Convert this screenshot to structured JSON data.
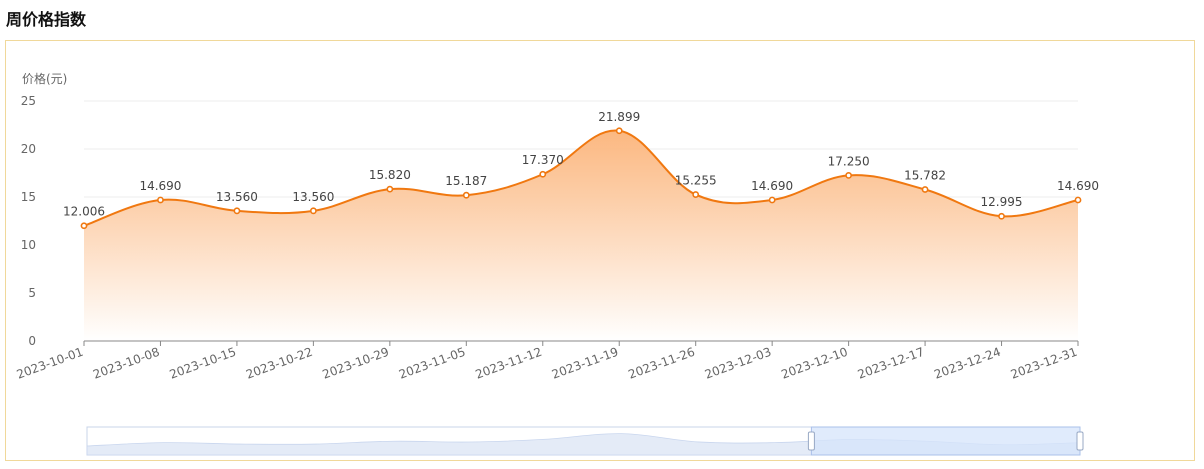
{
  "page": {
    "title": "周价格指数"
  },
  "chart_data": {
    "type": "line",
    "title": "周价格指数",
    "ylabel": "价格(元)",
    "xlabel": "",
    "ylim": [
      0,
      25
    ],
    "yticks": [
      "0",
      "5",
      "10",
      "15",
      "20",
      "25"
    ],
    "grid": true,
    "area_fill": true,
    "colors": {
      "line": "#f07810",
      "area_top": "#fbb47a",
      "area_bottom": "#ffffff",
      "slider_fill": "#d6e4fb",
      "slider_border": "#c8d4e8"
    },
    "categories": [
      "2023-10-01",
      "2023-10-08",
      "2023-10-15",
      "2023-10-22",
      "2023-10-29",
      "2023-11-05",
      "2023-11-12",
      "2023-11-19",
      "2023-11-26",
      "2023-12-03",
      "2023-12-10",
      "2023-12-17",
      "2023-12-24",
      "2023-12-31"
    ],
    "values": [
      12.006,
      14.69,
      13.56,
      13.56,
      15.82,
      15.187,
      17.37,
      21.899,
      15.255,
      14.69,
      17.25,
      15.782,
      12.995,
      14.69
    ],
    "data_labels": [
      "12.006",
      "14.690",
      "13.560",
      "13.560",
      "15.820",
      "15.187",
      "17.370",
      "21.899",
      "15.255",
      "14.690",
      "17.250",
      "15.782",
      "12.995",
      "14.690"
    ],
    "data_zoom": {
      "visible": true,
      "selected_range": [
        0.7295,
        1.0
      ]
    }
  }
}
